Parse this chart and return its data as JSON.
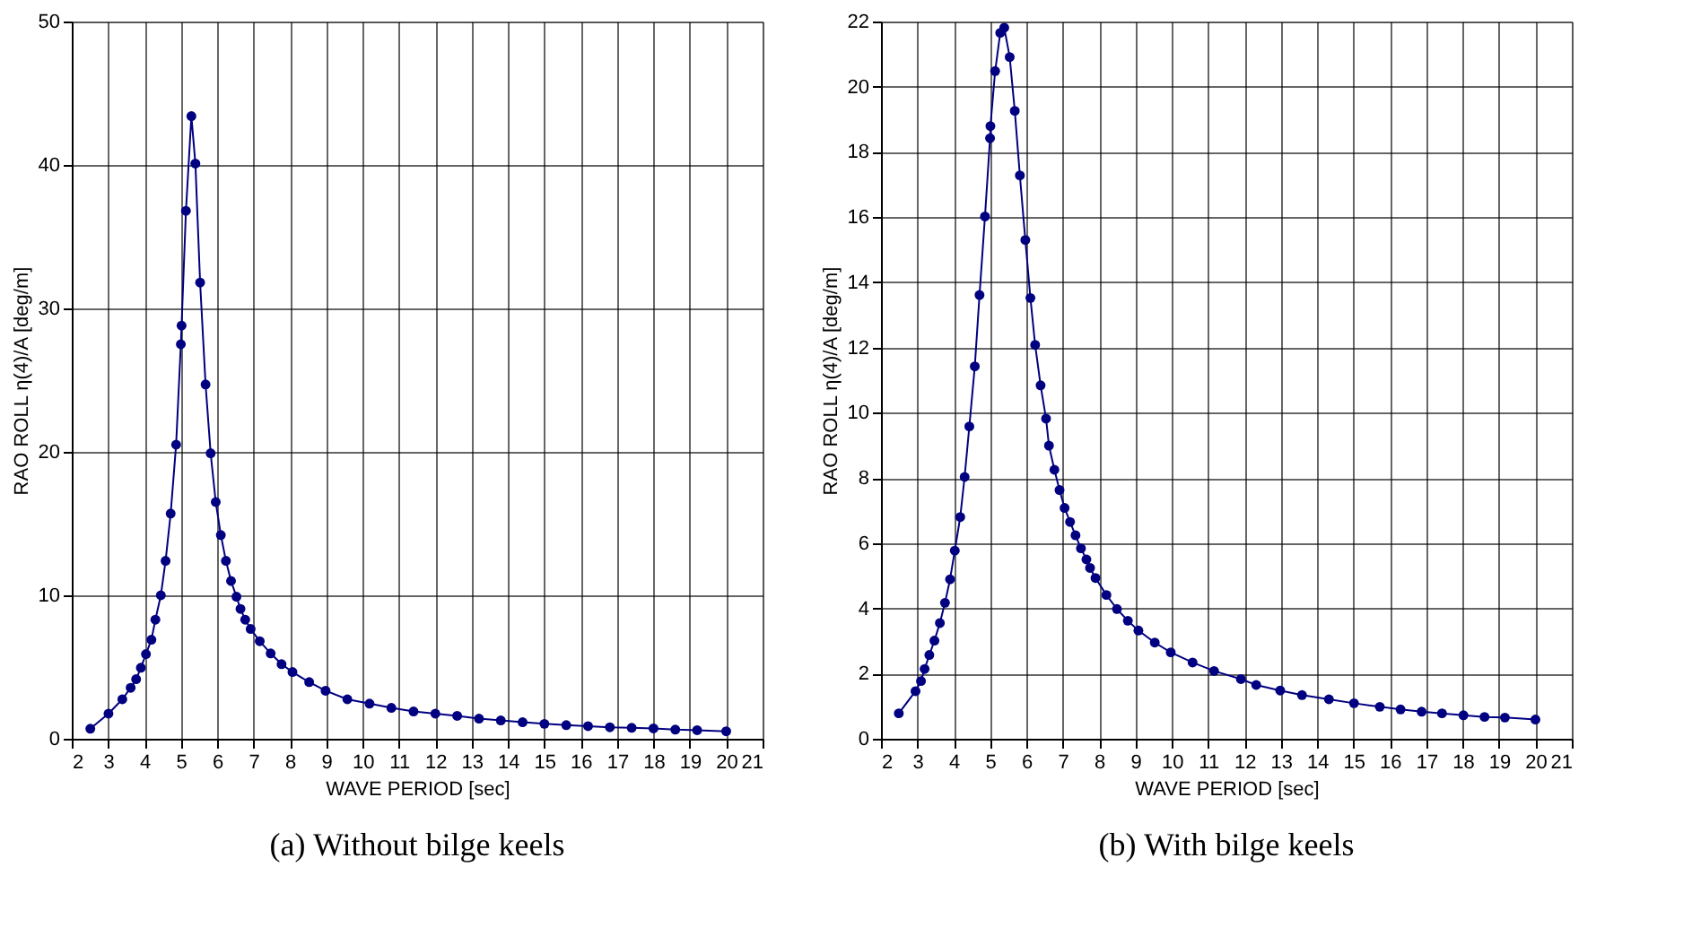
{
  "chart_data": [
    {
      "type": "line",
      "title": "(a) Without bilge keels",
      "xlabel": "WAVE PERIOD  [sec]",
      "ylabel": "RAO  ROLL  η(4)/A [deg/m]",
      "marker": "circle",
      "line_style": "solid",
      "grid": true,
      "xlim": [
        2,
        21
      ],
      "xticks": [
        2,
        3,
        4,
        5,
        6,
        7,
        8,
        9,
        10,
        11,
        12,
        13,
        14,
        15,
        16,
        17,
        18,
        19,
        20,
        21
      ],
      "ylim": [
        0,
        50
      ],
      "yticks": [
        0,
        10,
        20,
        30,
        40,
        50
      ],
      "x": [
        2.51,
        3.01,
        3.39,
        3.62,
        3.77,
        3.9,
        4.04,
        4.19,
        4.3,
        4.45,
        4.58,
        4.72,
        4.87,
        5.0,
        5.02,
        5.14,
        5.29,
        5.4,
        5.53,
        5.68,
        5.82,
        5.96,
        6.1,
        6.24,
        6.38,
        6.53,
        6.64,
        6.77,
        6.92,
        7.17,
        7.47,
        7.77,
        8.07,
        8.53,
        8.98,
        9.58,
        10.19,
        10.79,
        11.4,
        12.0,
        12.6,
        13.2,
        13.8,
        14.4,
        15.0,
        15.6,
        16.2,
        16.8,
        17.4,
        18.0,
        18.6,
        19.2,
        20.0
      ],
      "series": [
        {
          "color": "#000080",
          "values": [
            0.7,
            1.75,
            2.75,
            3.55,
            4.15,
            4.95,
            5.9,
            6.9,
            8.3,
            10.0,
            12.4,
            15.7,
            20.5,
            27.5,
            28.8,
            36.8,
            43.4,
            40.1,
            31.8,
            24.7,
            19.9,
            16.5,
            14.2,
            12.4,
            11.0,
            9.9,
            9.05,
            8.3,
            7.65,
            6.8,
            5.95,
            5.2,
            4.65,
            3.95,
            3.35,
            2.75,
            2.45,
            2.15,
            1.9,
            1.75,
            1.6,
            1.4,
            1.28,
            1.15,
            1.04,
            0.95,
            0.88,
            0.8,
            0.76,
            0.72,
            0.64,
            0.6,
            0.52
          ]
        }
      ]
    },
    {
      "type": "line",
      "title": "(b) With bilge keels",
      "xlabel": "WAVE PERIOD  [sec]",
      "ylabel": "RAO  ROLL  η(4)/A [deg/m]",
      "marker": "circle",
      "line_style": "solid",
      "grid": true,
      "xlim": [
        2,
        21
      ],
      "xticks": [
        2,
        3,
        4,
        5,
        6,
        7,
        8,
        9,
        10,
        11,
        12,
        13,
        14,
        15,
        16,
        17,
        18,
        19,
        20,
        21
      ],
      "ylim": [
        0,
        22
      ],
      "yticks": [
        0,
        2,
        4,
        6,
        8,
        10,
        12,
        14,
        16,
        18,
        20,
        22
      ],
      "x": [
        2.49,
        2.95,
        3.1,
        3.2,
        3.33,
        3.47,
        3.62,
        3.76,
        3.9,
        4.03,
        4.18,
        4.3,
        4.43,
        4.58,
        4.71,
        4.86,
        5.0,
        5.01,
        5.14,
        5.28,
        5.39,
        5.54,
        5.68,
        5.82,
        5.97,
        6.11,
        6.24,
        6.39,
        6.54,
        6.62,
        6.77,
        6.91,
        7.05,
        7.2,
        7.35,
        7.5,
        7.65,
        7.75,
        7.9,
        8.2,
        8.49,
        8.79,
        9.08,
        9.53,
        9.97,
        10.57,
        11.16,
        11.9,
        12.32,
        12.98,
        13.58,
        14.32,
        15.01,
        15.72,
        16.29,
        16.87,
        17.43,
        18.02,
        18.6,
        19.16,
        20.0
      ],
      "series": [
        {
          "color": "#000080",
          "values": [
            0.78,
            1.46,
            1.77,
            2.14,
            2.57,
            3.01,
            3.55,
            4.17,
            4.89,
            5.77,
            6.8,
            8.03,
            9.58,
            11.42,
            13.61,
            16.02,
            18.42,
            18.79,
            20.48,
            21.65,
            21.81,
            20.91,
            19.26,
            17.28,
            15.3,
            13.52,
            12.08,
            10.84,
            9.82,
            8.99,
            8.25,
            7.63,
            7.08,
            6.65,
            6.24,
            5.84,
            5.5,
            5.24,
            4.93,
            4.41,
            3.98,
            3.62,
            3.32,
            2.95,
            2.65,
            2.34,
            2.08,
            1.83,
            1.65,
            1.48,
            1.34,
            1.21,
            1.09,
            0.98,
            0.9,
            0.83,
            0.78,
            0.72,
            0.67,
            0.65,
            0.59
          ]
        }
      ]
    }
  ]
}
